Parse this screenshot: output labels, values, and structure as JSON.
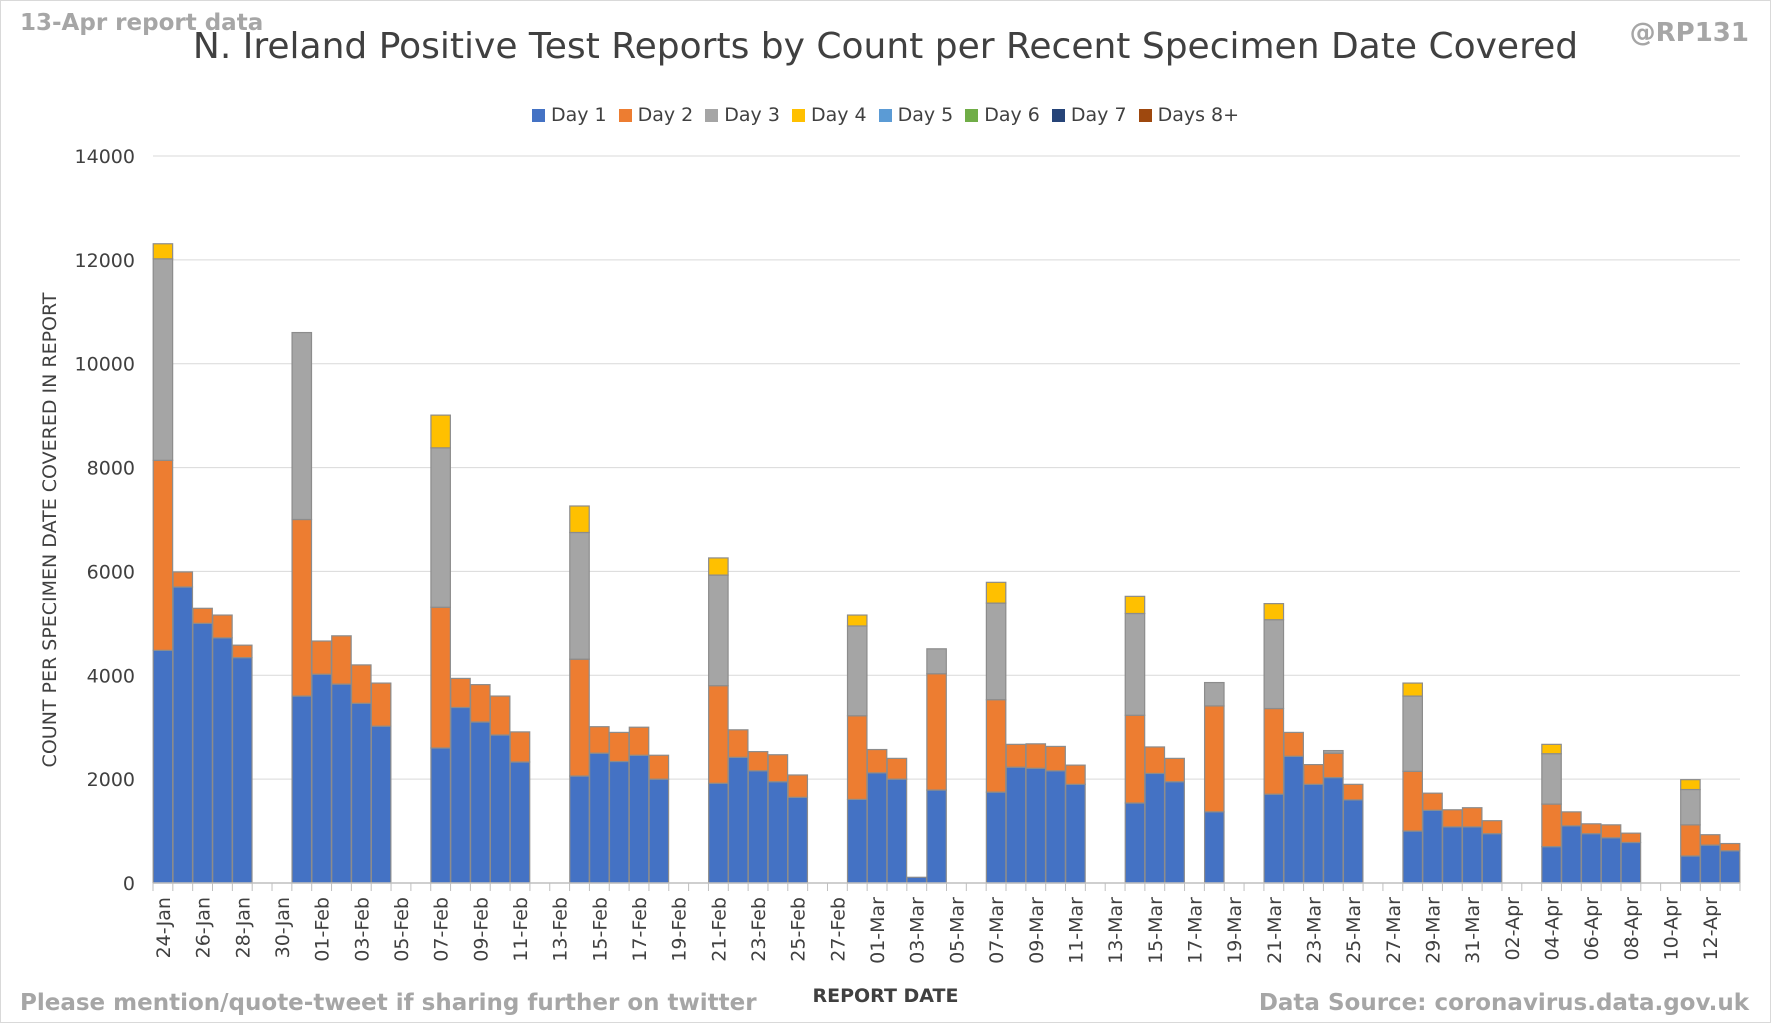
{
  "header": {
    "report_date_note": "13-Apr report data",
    "credit": "@RP131"
  },
  "footer": {
    "share_note": "Please mention/quote-tweet if sharing further on twitter",
    "data_source": "Data Source: coronavirus.data.gov.uk"
  },
  "chart_data": {
    "type": "bar",
    "stacked": true,
    "title": "N. Ireland Positive Test Reports by Count per Recent Specimen Date Covered",
    "xlabel": "REPORT DATE",
    "ylabel": "COUNT PER SPECIMEN DATE COVERED IN REPORT",
    "ylim": [
      0,
      14000
    ],
    "yticks": [
      0,
      2000,
      4000,
      6000,
      8000,
      10000,
      12000,
      14000
    ],
    "grid": true,
    "legend_position": "top",
    "categories": [
      "24-Jan",
      "25-Jan",
      "26-Jan",
      "27-Jan",
      "28-Jan",
      "29-Jan",
      "30-Jan",
      "31-Jan",
      "01-Feb",
      "02-Feb",
      "03-Feb",
      "04-Feb",
      "05-Feb",
      "06-Feb",
      "07-Feb",
      "08-Feb",
      "09-Feb",
      "10-Feb",
      "11-Feb",
      "12-Feb",
      "13-Feb",
      "14-Feb",
      "15-Feb",
      "16-Feb",
      "17-Feb",
      "18-Feb",
      "19-Feb",
      "20-Feb",
      "21-Feb",
      "22-Feb",
      "23-Feb",
      "24-Feb",
      "25-Feb",
      "26-Feb",
      "27-Feb",
      "28-Feb",
      "01-Mar",
      "02-Mar",
      "03-Mar",
      "04-Mar",
      "05-Mar",
      "06-Mar",
      "07-Mar",
      "08-Mar",
      "09-Mar",
      "10-Mar",
      "11-Mar",
      "12-Mar",
      "13-Mar",
      "14-Mar",
      "15-Mar",
      "16-Mar",
      "17-Mar",
      "18-Mar",
      "19-Mar",
      "20-Mar",
      "21-Mar",
      "22-Mar",
      "23-Mar",
      "24-Mar",
      "25-Mar",
      "26-Mar",
      "27-Mar",
      "28-Mar",
      "29-Mar",
      "30-Mar",
      "31-Mar",
      "01-Apr",
      "02-Apr",
      "03-Apr",
      "04-Apr",
      "05-Apr",
      "06-Apr",
      "07-Apr",
      "08-Apr",
      "09-Apr",
      "10-Apr",
      "11-Apr",
      "12-Apr",
      "13-Apr"
    ],
    "tick_labels": [
      "24-Jan",
      "26-Jan",
      "28-Jan",
      "30-Jan",
      "01-Feb",
      "03-Feb",
      "05-Feb",
      "07-Feb",
      "09-Feb",
      "11-Feb",
      "13-Feb",
      "15-Feb",
      "17-Feb",
      "19-Feb",
      "21-Feb",
      "23-Feb",
      "25-Feb",
      "27-Feb",
      "01-Mar",
      "03-Mar",
      "05-Mar",
      "07-Mar",
      "09-Mar",
      "11-Mar",
      "13-Mar",
      "15-Mar",
      "17-Mar",
      "19-Mar",
      "21-Mar",
      "23-Mar",
      "25-Mar",
      "27-Mar",
      "29-Mar",
      "31-Mar",
      "02-Apr",
      "04-Apr",
      "06-Apr",
      "08-Apr",
      "10-Apr",
      "12-Apr"
    ],
    "series": [
      {
        "name": "Day 1",
        "color": "#4472c4",
        "values": [
          4480,
          5700,
          5000,
          4720,
          4340,
          0,
          0,
          3600,
          4020,
          3830,
          3460,
          3020,
          0,
          0,
          2600,
          3380,
          3100,
          2850,
          2330,
          0,
          0,
          2060,
          2500,
          2340,
          2460,
          2000,
          0,
          0,
          1920,
          2420,
          2160,
          1950,
          1650,
          0,
          0,
          1610,
          2120,
          2000,
          110,
          1790,
          0,
          0,
          1750,
          2230,
          2210,
          2160,
          1900,
          0,
          0,
          1540,
          2110,
          1950,
          0,
          1370,
          0,
          0,
          1710,
          2440,
          1900,
          2030,
          1600,
          0,
          0,
          1000,
          1400,
          1080,
          1080,
          950,
          0,
          0,
          700,
          1100,
          950,
          870,
          780,
          0,
          0,
          520,
          730,
          620
        ]
      },
      {
        "name": "Day 2",
        "color": "#ed7d31",
        "values": [
          3660,
          290,
          290,
          440,
          240,
          0,
          0,
          3400,
          640,
          930,
          740,
          830,
          0,
          0,
          2710,
          560,
          720,
          750,
          580,
          0,
          0,
          2250,
          510,
          560,
          540,
          460,
          0,
          0,
          1880,
          530,
          370,
          520,
          430,
          0,
          0,
          1610,
          450,
          400,
          0,
          2240,
          0,
          0,
          1780,
          440,
          470,
          470,
          370,
          0,
          0,
          1690,
          510,
          450,
          0,
          2040,
          0,
          0,
          1650,
          460,
          380,
          470,
          300,
          0,
          0,
          1150,
          330,
          330,
          370,
          250,
          0,
          0,
          820,
          270,
          190,
          250,
          180,
          0,
          0,
          600,
          200,
          140
        ]
      },
      {
        "name": "Day 3",
        "color": "#a5a5a5",
        "values": [
          3880,
          0,
          0,
          0,
          0,
          0,
          0,
          3600,
          0,
          0,
          0,
          0,
          0,
          0,
          3070,
          0,
          0,
          0,
          0,
          0,
          0,
          2440,
          0,
          0,
          0,
          0,
          0,
          0,
          2130,
          0,
          0,
          0,
          0,
          0,
          0,
          1730,
          0,
          0,
          0,
          480,
          0,
          0,
          1860,
          0,
          0,
          0,
          0,
          0,
          0,
          1960,
          0,
          0,
          0,
          450,
          0,
          0,
          1710,
          0,
          0,
          50,
          0,
          0,
          0,
          1450,
          0,
          0,
          0,
          0,
          0,
          0,
          970,
          0,
          0,
          0,
          0,
          0,
          0,
          680,
          0,
          0
        ]
      },
      {
        "name": "Day 4",
        "color": "#ffc000",
        "values": [
          290,
          0,
          0,
          0,
          0,
          0,
          0,
          0,
          0,
          0,
          0,
          0,
          0,
          0,
          630,
          0,
          0,
          0,
          0,
          0,
          0,
          510,
          0,
          0,
          0,
          0,
          0,
          0,
          330,
          0,
          0,
          0,
          0,
          0,
          0,
          210,
          0,
          0,
          0,
          0,
          0,
          0,
          400,
          0,
          0,
          0,
          0,
          0,
          0,
          330,
          0,
          0,
          0,
          0,
          0,
          0,
          310,
          0,
          0,
          0,
          0,
          0,
          0,
          250,
          0,
          0,
          0,
          0,
          0,
          0,
          180,
          0,
          0,
          0,
          0,
          0,
          0,
          190,
          0,
          0
        ]
      },
      {
        "name": "Day 5",
        "color": "#5b9bd5",
        "values": [
          0,
          0,
          0,
          0,
          0,
          0,
          0,
          0,
          0,
          0,
          0,
          0,
          0,
          0,
          0,
          0,
          0,
          0,
          0,
          0,
          0,
          0,
          0,
          0,
          0,
          0,
          0,
          0,
          0,
          0,
          0,
          0,
          0,
          0,
          0,
          0,
          0,
          0,
          0,
          0,
          0,
          0,
          0,
          0,
          0,
          0,
          0,
          0,
          0,
          0,
          0,
          0,
          0,
          0,
          0,
          0,
          0,
          0,
          0,
          0,
          0,
          0,
          0,
          0,
          0,
          0,
          0,
          0,
          0,
          0,
          0,
          0,
          0,
          0,
          0,
          0,
          0,
          0,
          0,
          0
        ]
      },
      {
        "name": "Day 6",
        "color": "#70ad47",
        "values": [
          0,
          0,
          0,
          0,
          0,
          0,
          0,
          0,
          0,
          0,
          0,
          0,
          0,
          0,
          0,
          0,
          0,
          0,
          0,
          0,
          0,
          0,
          0,
          0,
          0,
          0,
          0,
          0,
          0,
          0,
          0,
          0,
          0,
          0,
          0,
          0,
          0,
          0,
          0,
          0,
          0,
          0,
          0,
          0,
          0,
          0,
          0,
          0,
          0,
          0,
          0,
          0,
          0,
          0,
          0,
          0,
          0,
          0,
          0,
          0,
          0,
          0,
          0,
          0,
          0,
          0,
          0,
          0,
          0,
          0,
          0,
          0,
          0,
          0,
          0,
          0,
          0,
          0,
          0,
          0
        ]
      },
      {
        "name": "Day 7",
        "color": "#264478",
        "values": [
          0,
          0,
          0,
          0,
          0,
          0,
          0,
          0,
          0,
          0,
          0,
          0,
          0,
          0,
          0,
          0,
          0,
          0,
          0,
          0,
          0,
          0,
          0,
          0,
          0,
          0,
          0,
          0,
          0,
          0,
          0,
          0,
          0,
          0,
          0,
          0,
          0,
          0,
          0,
          0,
          0,
          0,
          0,
          0,
          0,
          0,
          0,
          0,
          0,
          0,
          0,
          0,
          0,
          0,
          0,
          0,
          0,
          0,
          0,
          0,
          0,
          0,
          0,
          0,
          0,
          0,
          0,
          0,
          0,
          0,
          0,
          0,
          0,
          0,
          0,
          0,
          0,
          0,
          0,
          0
        ]
      },
      {
        "name": "Days 8+",
        "color": "#9e480e",
        "values": [
          0,
          0,
          0,
          0,
          0,
          0,
          0,
          0,
          0,
          0,
          0,
          0,
          0,
          0,
          0,
          0,
          0,
          0,
          0,
          0,
          0,
          0,
          0,
          0,
          0,
          0,
          0,
          0,
          0,
          0,
          0,
          0,
          0,
          0,
          0,
          0,
          0,
          0,
          0,
          0,
          0,
          0,
          0,
          0,
          0,
          0,
          0,
          0,
          0,
          0,
          0,
          0,
          0,
          0,
          0,
          0,
          0,
          0,
          0,
          0,
          0,
          0,
          0,
          0,
          0,
          0,
          0,
          0,
          0,
          0,
          0,
          0,
          0,
          0,
          0,
          0,
          0,
          0,
          0,
          0
        ]
      }
    ]
  }
}
